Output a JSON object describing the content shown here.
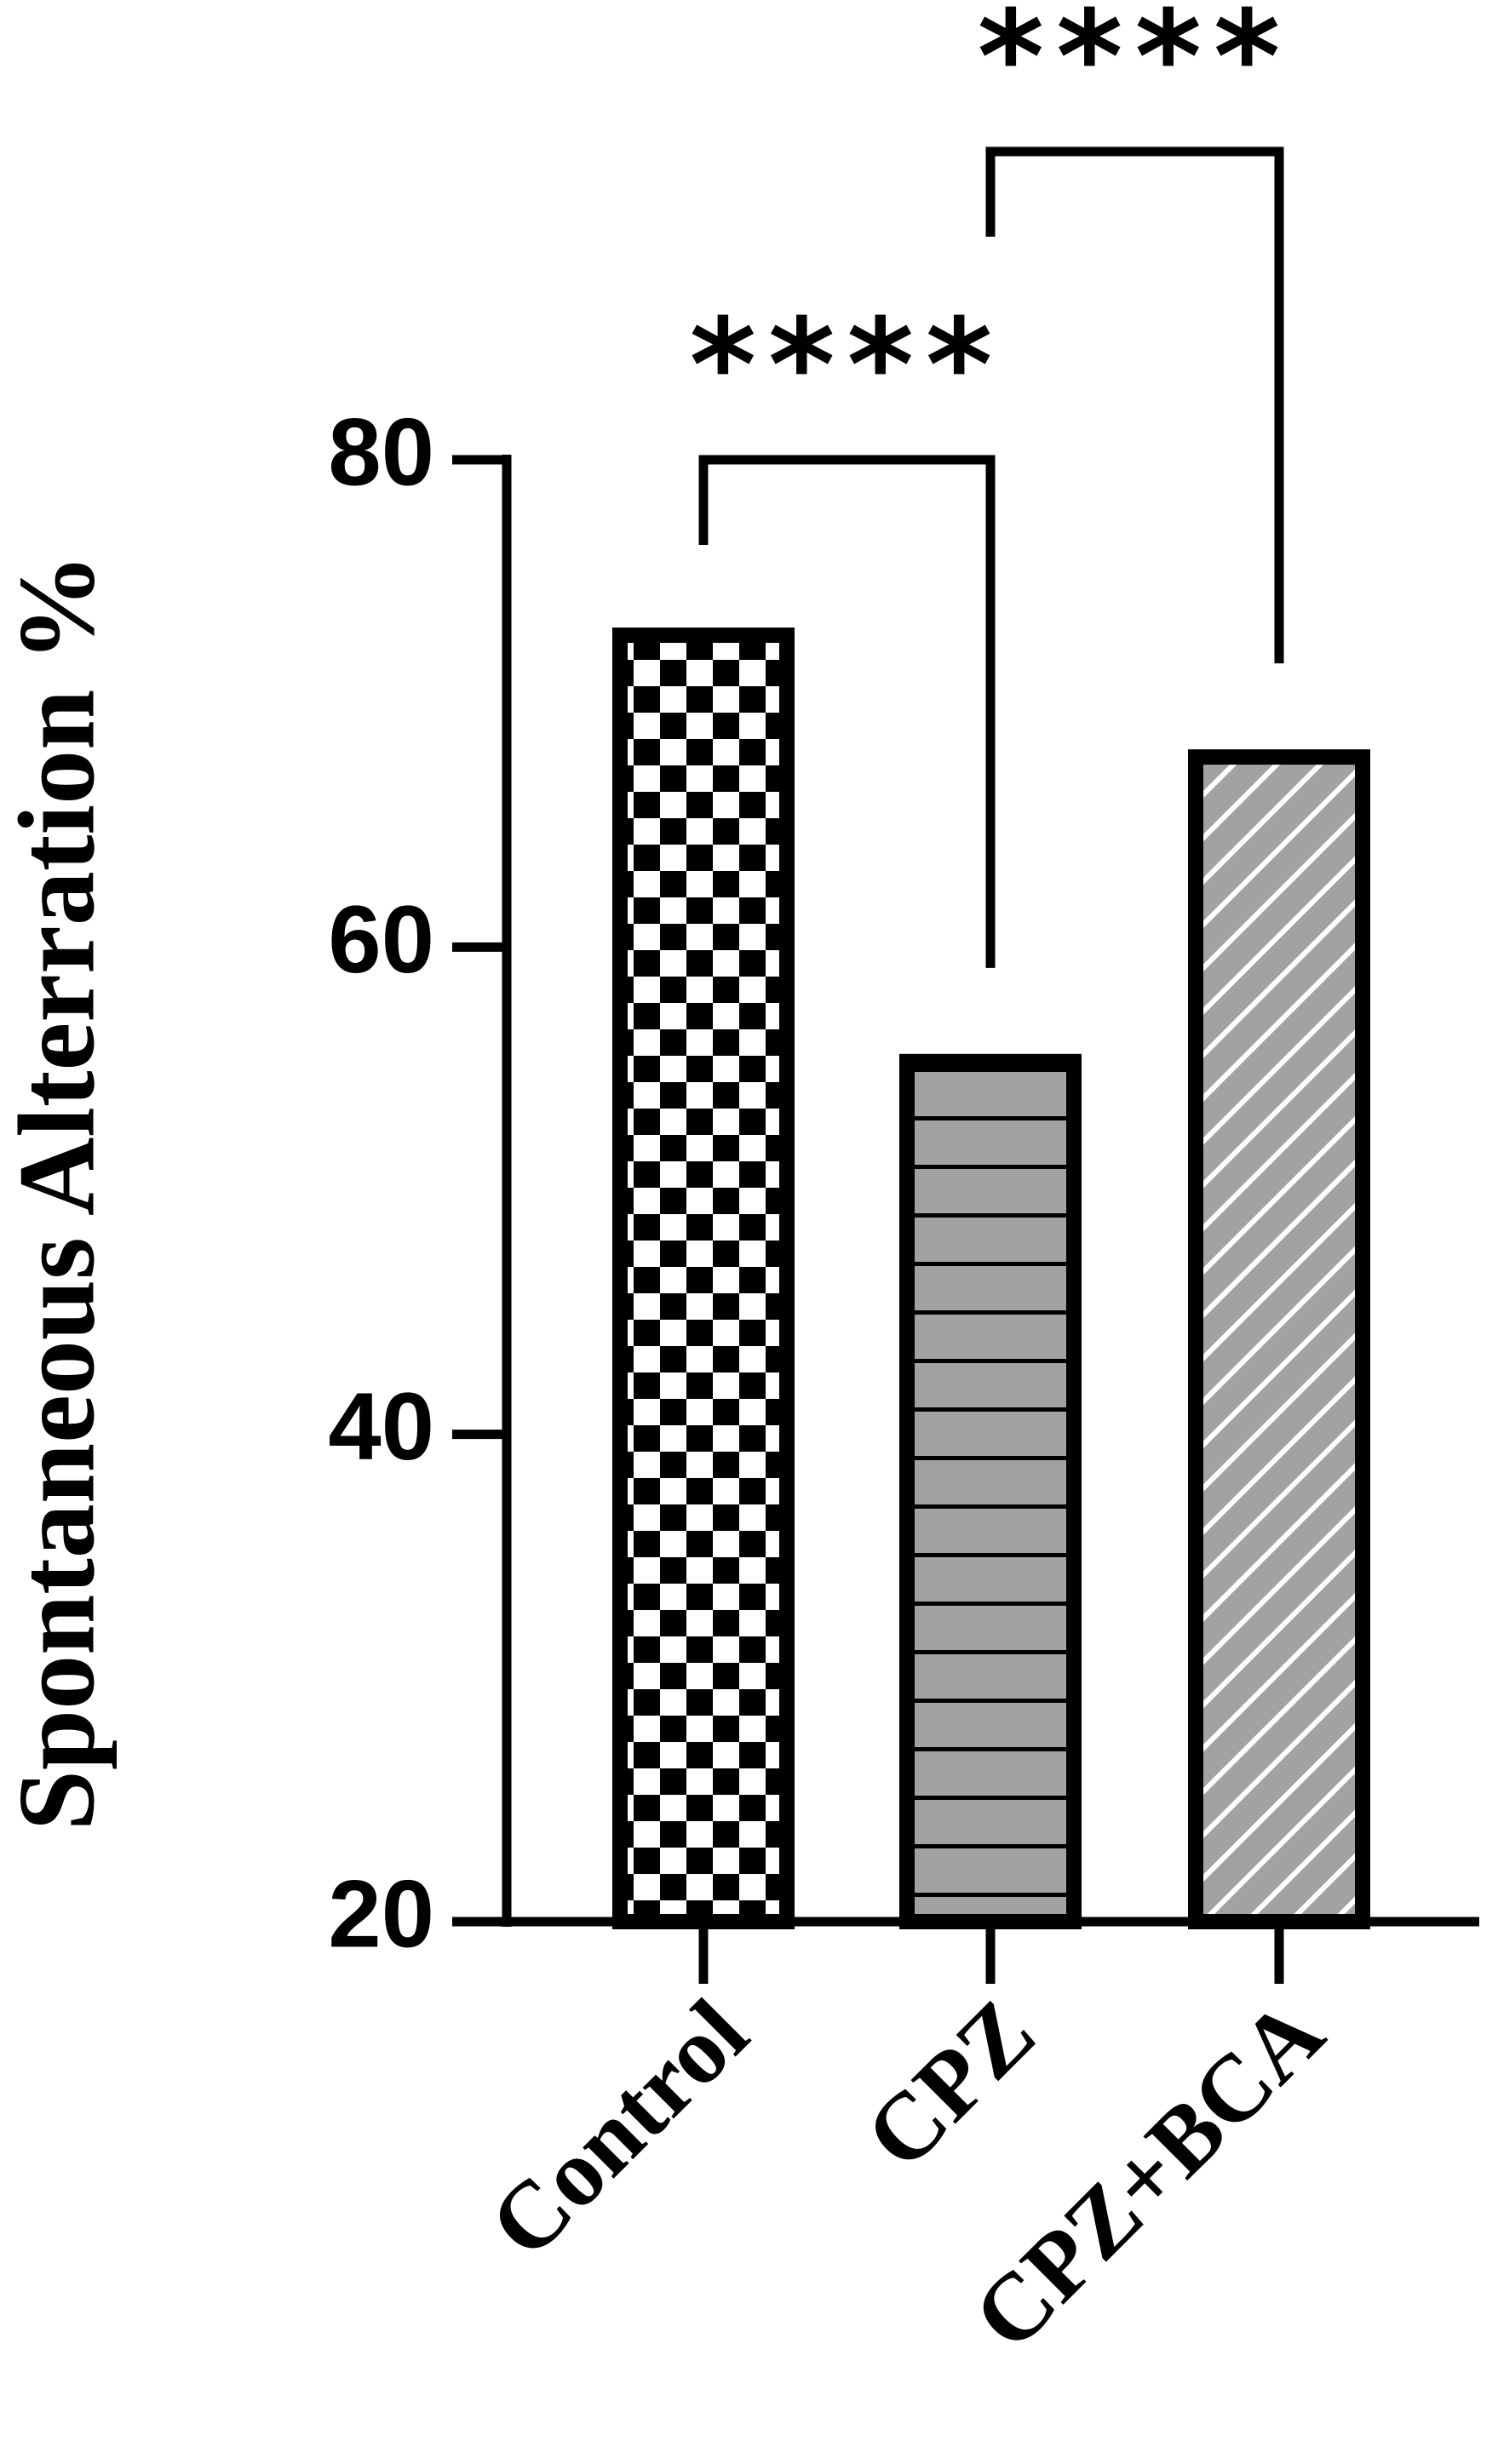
{
  "chart_data": {
    "type": "bar",
    "y_label": "Spontaneous  Alterration %",
    "categories": [
      "Control",
      "CPZ",
      "CPZ+BCA"
    ],
    "values": [
      72.8,
      55.3,
      67.8
    ],
    "patterns": [
      "checker",
      "hstripe",
      "diagonal"
    ],
    "ylim": [
      20,
      80
    ],
    "yticks": [
      20,
      40,
      60,
      80
    ],
    "annotations": [
      "****",
      "****"
    ]
  }
}
